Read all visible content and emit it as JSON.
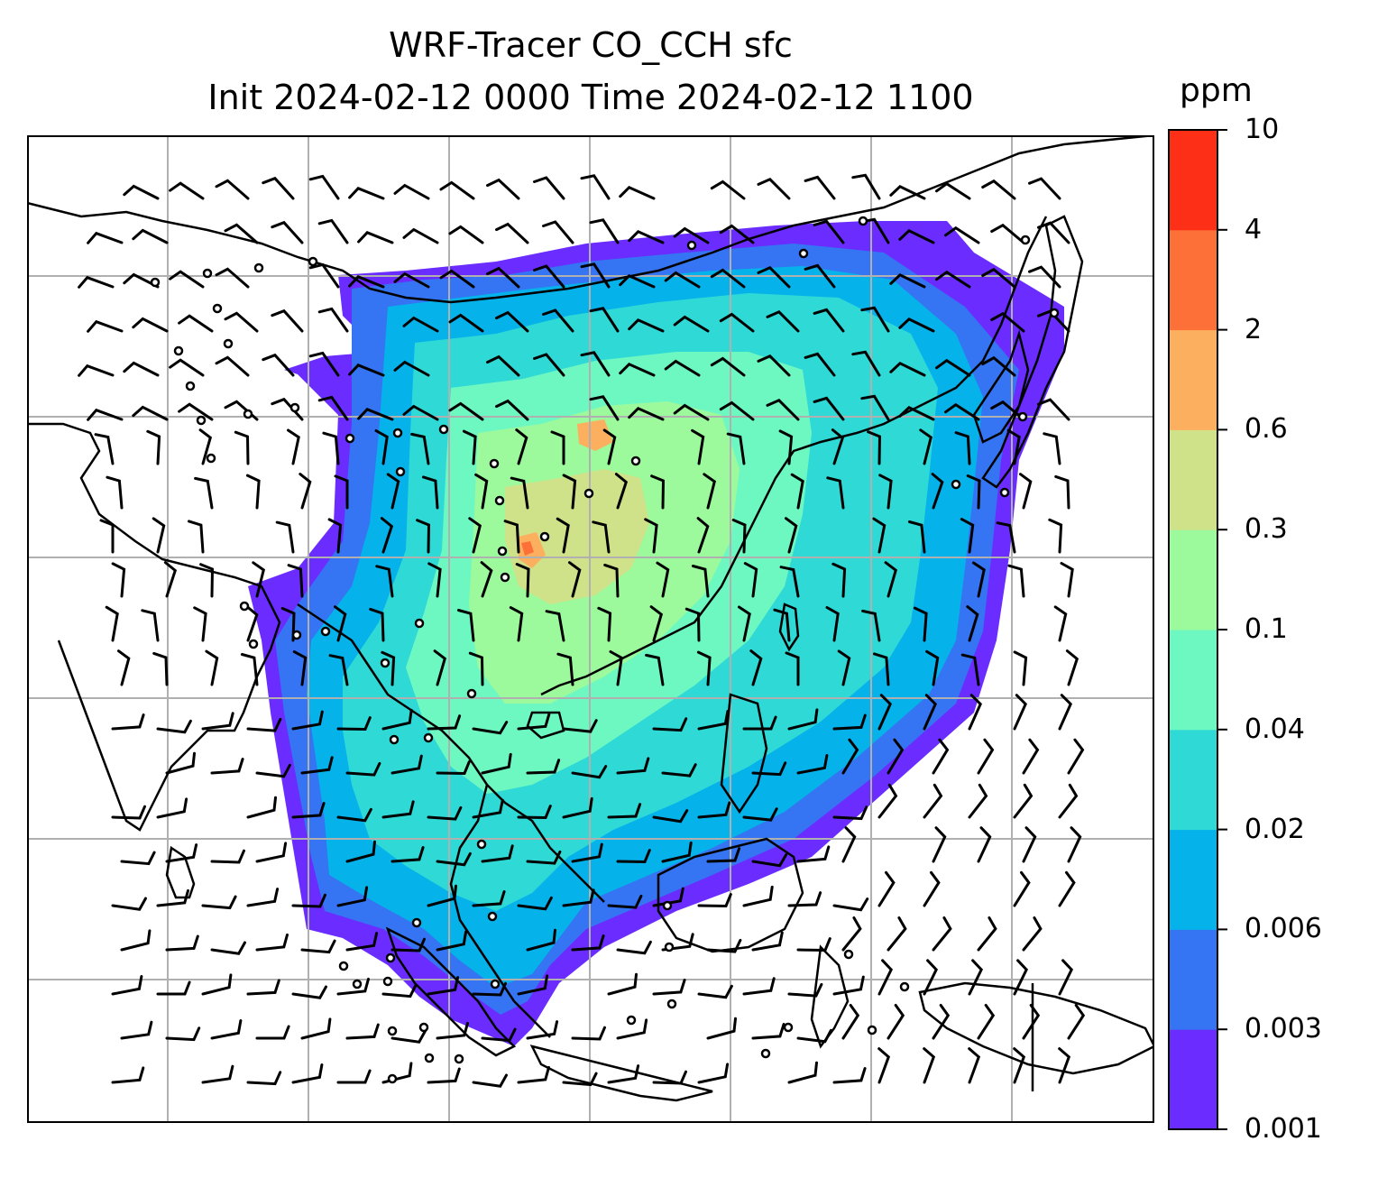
{
  "title_line1": "WRF-Tracer CO_CCH sfc",
  "title_line2": "Init 2024-02-12 0000 Time 2024-02-12 1100",
  "colorbar": {
    "units": "ppm",
    "levels": [
      "0.001",
      "0.003",
      "0.006",
      "0.02",
      "0.04",
      "0.1",
      "0.3",
      "0.6",
      "2",
      "4",
      "10"
    ],
    "colors": [
      "#6a2cff",
      "#3574f2",
      "#06b2ea",
      "#2fdad6",
      "#6ef8c1",
      "#9cfa9c",
      "#cfe189",
      "#fcb05f",
      "#fd7139",
      "#fd2f17"
    ]
  },
  "map": {
    "gridline_color": "#b0b0b0",
    "coastline_color": "#000000",
    "wind_barbs": "black",
    "station_markers": "circle"
  }
}
